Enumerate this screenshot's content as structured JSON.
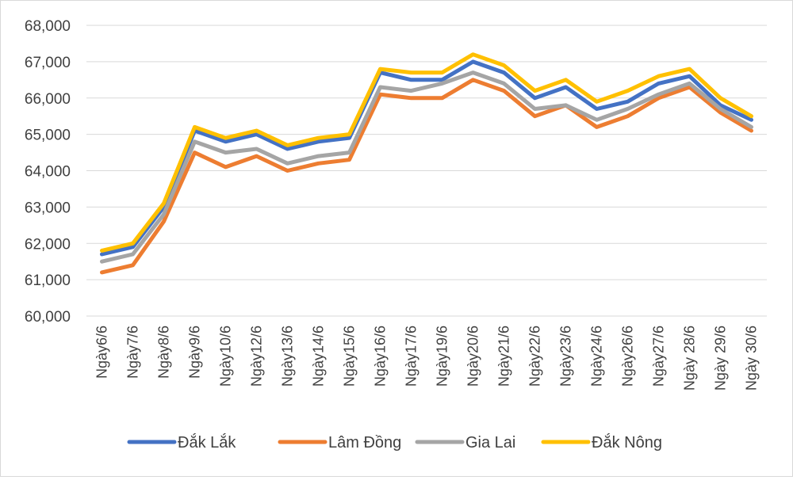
{
  "chart_data": {
    "type": "line",
    "categories": [
      "Ngày6/6",
      "Ngày7/6",
      "Ngày8/6",
      "Ngày9/6",
      "Ngày10/6",
      "Ngày12/6",
      "Ngày13/6",
      "Ngày14/6",
      "Ngày15/6",
      "Ngày16/6",
      "Ngày17/6",
      "Ngày19/6",
      "Ngày20/6",
      "Ngày21/6",
      "Ngày22/6",
      "Ngày23/6",
      "Ngày24/6",
      "Ngày26/6",
      "Ngày27/6",
      "Ngày 28/6",
      "Ngày 29/6",
      "Ngày 30/6"
    ],
    "ylim": [
      60000,
      68000
    ],
    "yticks": [
      60000,
      61000,
      62000,
      63000,
      64000,
      65000,
      66000,
      67000,
      68000
    ],
    "ytick_labels": [
      "60,000",
      "61,000",
      "62,000",
      "63,000",
      "64,000",
      "65,000",
      "66,000",
      "67,000",
      "68,000"
    ],
    "grid": true,
    "legend_position": "bottom",
    "series": [
      {
        "name": "Đắk Lắk",
        "color": "#4472C4",
        "values": [
          61700,
          61900,
          63000,
          65100,
          64800,
          65000,
          64600,
          64800,
          64900,
          66700,
          66500,
          66500,
          67000,
          66700,
          66000,
          66300,
          65700,
          65900,
          66400,
          66600,
          65800,
          65400
        ]
      },
      {
        "name": "Lâm Đồng",
        "color": "#ED7D31",
        "values": [
          61200,
          61400,
          62600,
          64500,
          64100,
          64400,
          64000,
          64200,
          64300,
          66100,
          66000,
          66000,
          66500,
          66200,
          65500,
          65800,
          65200,
          65500,
          66000,
          66300,
          65600,
          65100
        ]
      },
      {
        "name": "Gia Lai",
        "color": "#A5A5A5",
        "values": [
          61500,
          61700,
          62800,
          64800,
          64500,
          64600,
          64200,
          64400,
          64500,
          66300,
          66200,
          66400,
          66700,
          66400,
          65700,
          65800,
          65400,
          65700,
          66100,
          66400,
          65700,
          65200
        ]
      },
      {
        "name": "Đắk Nông",
        "color": "#FFC000",
        "values": [
          61800,
          62000,
          63100,
          65200,
          64900,
          65100,
          64700,
          64900,
          65000,
          66800,
          66700,
          66700,
          67200,
          66900,
          66200,
          66500,
          65900,
          66200,
          66600,
          66800,
          66000,
          65500
        ]
      }
    ]
  }
}
